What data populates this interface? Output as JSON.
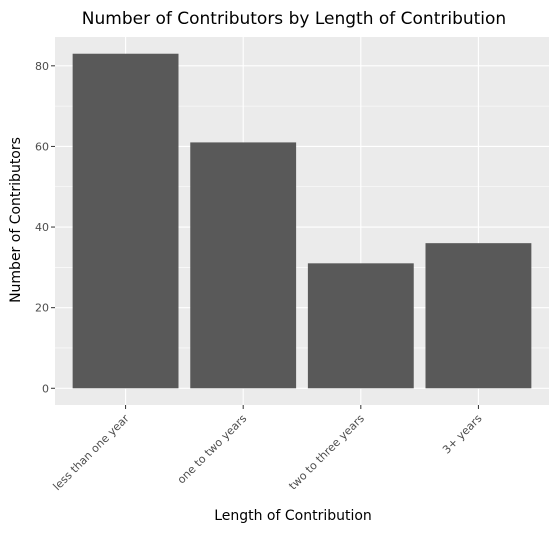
{
  "chart_data": {
    "type": "bar",
    "title": "Number of Contributors by Length of Contribution",
    "xlabel": "Length of Contribution",
    "ylabel": "Number of Contributors",
    "categories": [
      "less than one year",
      "one to two years",
      "two to three years",
      "3+ years"
    ],
    "values": [
      83,
      61,
      31,
      36
    ],
    "ylim": [
      -4.15,
      87.15
    ],
    "yticks": [
      0,
      20,
      40,
      60,
      80
    ],
    "grid": true,
    "legend": "none",
    "colors": {
      "panel": "#ebebeb",
      "grid": "#ffffff",
      "bar": "#595959",
      "tick": "#333333",
      "tick_label": "#4d4d4d"
    }
  }
}
